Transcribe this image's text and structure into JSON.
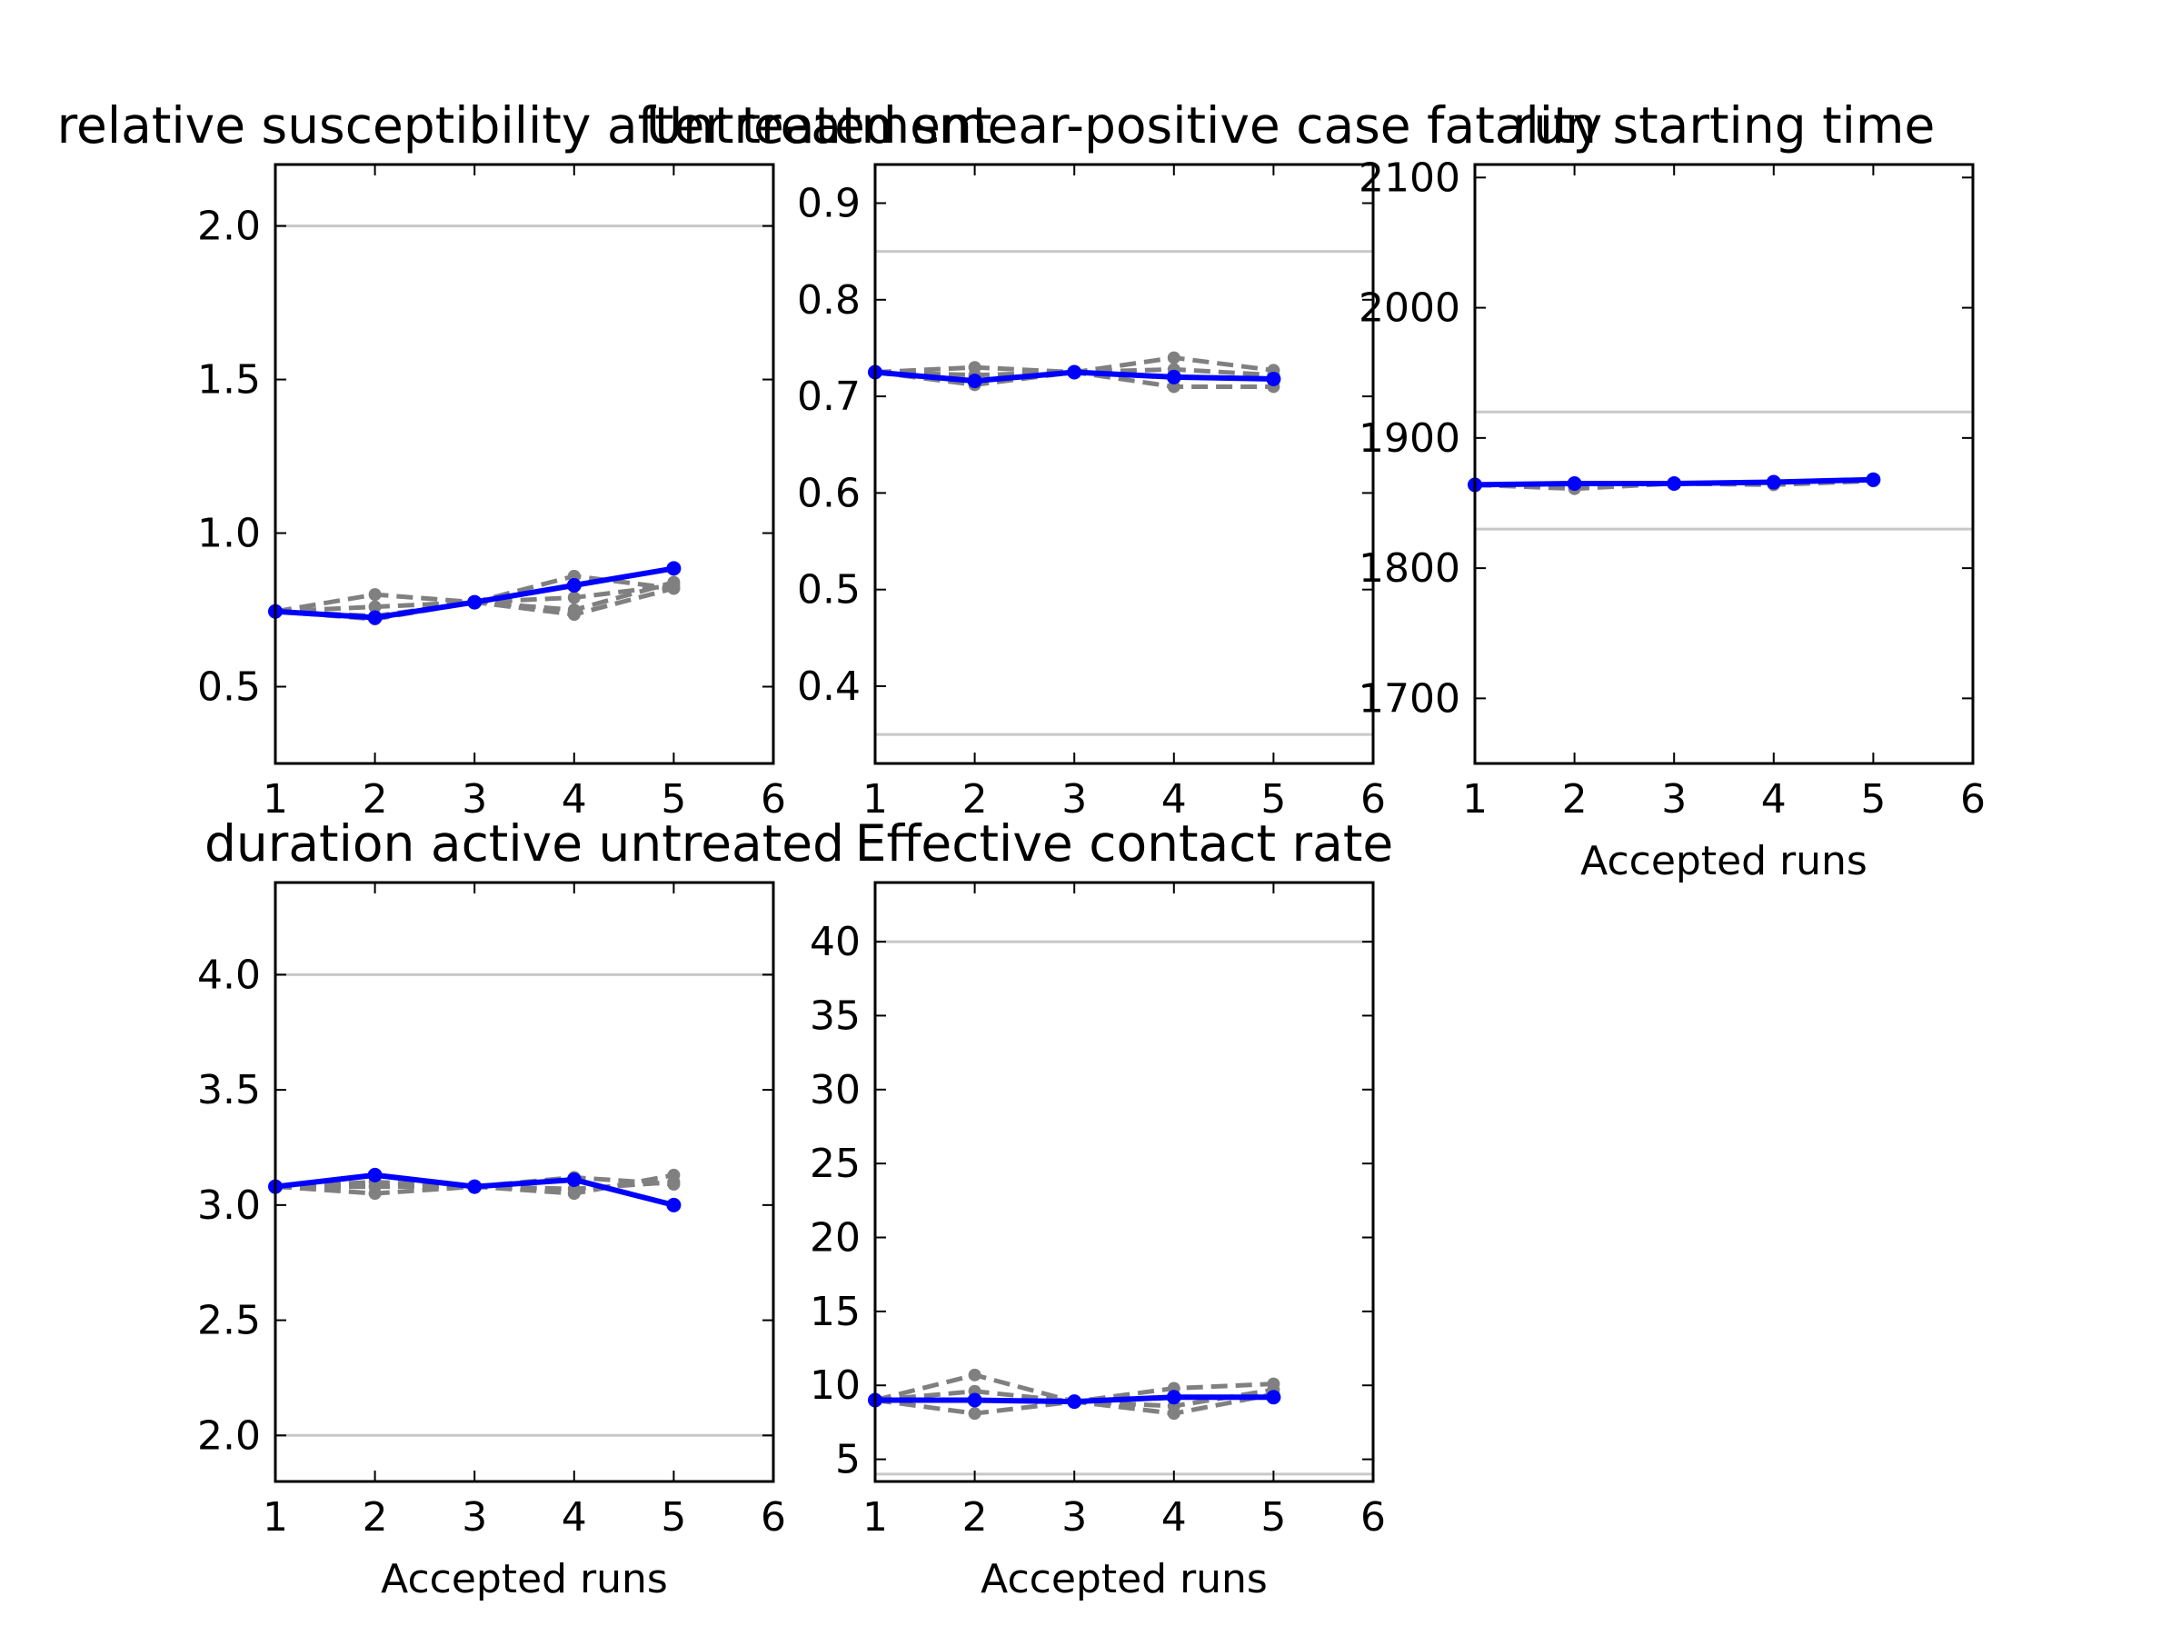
{
  "colors": {
    "main": "#0000ff",
    "trial": "#808080",
    "reference": "#c8c8c8"
  },
  "chart_data": [
    {
      "type": "line",
      "title": "relative susceptibility after treatment",
      "xlabel": "",
      "ylabel": "",
      "xlim": [
        1,
        6
      ],
      "ylim": [
        0.25,
        2.2
      ],
      "xticks": [
        1,
        2,
        3,
        4,
        5,
        6
      ],
      "yticks": [
        0.5,
        1.0,
        1.5,
        2.0
      ],
      "ytick_labels": [
        "0.5",
        "1.0",
        "1.5",
        "2.0"
      ],
      "reference_lines": [
        0.25,
        2.0
      ],
      "accepted": {
        "x": [
          1,
          2,
          3,
          4,
          5
        ],
        "y": [
          0.745,
          0.725,
          0.775,
          0.83,
          0.885
        ]
      },
      "trials": [
        {
          "x": [
            1,
            2,
            3,
            4,
            5
          ],
          "y": [
            0.745,
            0.8,
            0.775,
            0.86,
            0.82
          ]
        },
        {
          "x": [
            1,
            2,
            3,
            4,
            5
          ],
          "y": [
            0.745,
            0.76,
            0.775,
            0.79,
            0.83
          ]
        },
        {
          "x": [
            1,
            2,
            3,
            4,
            5
          ],
          "y": [
            0.745,
            0.73,
            0.775,
            0.75,
            0.84
          ]
        },
        {
          "x": [
            1,
            2,
            3,
            4,
            5
          ],
          "y": [
            0.745,
            0.72,
            0.775,
            0.735,
            0.82
          ]
        }
      ]
    },
    {
      "type": "line",
      "title": "Untreated smear-positive case fatality",
      "xlabel": "",
      "ylabel": "",
      "xlim": [
        1,
        6
      ],
      "ylim": [
        0.32,
        0.94
      ],
      "xticks": [
        1,
        2,
        3,
        4,
        5,
        6
      ],
      "yticks": [
        0.4,
        0.5,
        0.6,
        0.7,
        0.8,
        0.9
      ],
      "ytick_labels": [
        "0.4",
        "0.5",
        "0.6",
        "0.7",
        "0.8",
        "0.9"
      ],
      "reference_lines": [
        0.35,
        0.85
      ],
      "accepted": {
        "x": [
          1,
          2,
          3,
          4,
          5
        ],
        "y": [
          0.725,
          0.716,
          0.725,
          0.72,
          0.718
        ]
      },
      "trials": [
        {
          "x": [
            1,
            2,
            3,
            4,
            5
          ],
          "y": [
            0.725,
            0.73,
            0.725,
            0.74,
            0.727
          ]
        },
        {
          "x": [
            1,
            2,
            3,
            4,
            5
          ],
          "y": [
            0.725,
            0.712,
            0.725,
            0.71,
            0.71
          ]
        },
        {
          "x": [
            1,
            2,
            3,
            4,
            5
          ],
          "y": [
            0.725,
            0.722,
            0.725,
            0.728,
            0.722
          ]
        }
      ]
    },
    {
      "type": "line",
      "title": "run starting time",
      "xlabel": "Accepted runs",
      "ylabel": "",
      "xlim": [
        1,
        6
      ],
      "ylim": [
        1650,
        2110
      ],
      "xticks": [
        1,
        2,
        3,
        4,
        5,
        6
      ],
      "yticks": [
        1700,
        1800,
        1900,
        2000,
        2100
      ],
      "ytick_labels": [
        "1700",
        "1800",
        "1900",
        "2000",
        "2100"
      ],
      "reference_lines": [
        1830,
        1920
      ],
      "accepted": {
        "x": [
          1,
          2,
          3,
          4,
          5
        ],
        "y": [
          1864,
          1865,
          1865,
          1866,
          1868
        ]
      },
      "trials": [
        {
          "x": [
            1,
            2,
            3,
            4,
            5
          ],
          "y": [
            1864,
            1861,
            1865,
            1864,
            1867
          ]
        },
        {
          "x": [
            1,
            2,
            3,
            4,
            5
          ],
          "y": [
            1864,
            1863,
            1865,
            1865,
            1867
          ]
        }
      ]
    },
    {
      "type": "line",
      "title": "duration active untreated",
      "xlabel": "Accepted runs",
      "ylabel": "",
      "xlim": [
        1,
        6
      ],
      "ylim": [
        1.8,
        4.4
      ],
      "xticks": [
        1,
        2,
        3,
        4,
        5,
        6
      ],
      "yticks": [
        2.0,
        2.5,
        3.0,
        3.5,
        4.0
      ],
      "ytick_labels": [
        "2.0",
        "2.5",
        "3.0",
        "3.5",
        "4.0"
      ],
      "reference_lines": [
        2.0,
        4.0
      ],
      "accepted": {
        "x": [
          1,
          2,
          3,
          4,
          5
        ],
        "y": [
          3.08,
          3.13,
          3.08,
          3.11,
          3.0
        ]
      },
      "trials": [
        {
          "x": [
            1,
            2,
            3,
            4,
            5
          ],
          "y": [
            3.08,
            3.05,
            3.08,
            3.05,
            3.13
          ]
        },
        {
          "x": [
            1,
            2,
            3,
            4,
            5
          ],
          "y": [
            3.08,
            3.08,
            3.08,
            3.12,
            3.09
          ]
        },
        {
          "x": [
            1,
            2,
            3,
            4,
            5
          ],
          "y": [
            3.08,
            3.1,
            3.08,
            3.07,
            3.1
          ]
        }
      ]
    },
    {
      "type": "line",
      "title": "Effective contact rate",
      "xlabel": "Accepted runs",
      "ylabel": "",
      "xlim": [
        1,
        6
      ],
      "ylim": [
        3.5,
        44
      ],
      "xticks": [
        1,
        2,
        3,
        4,
        5,
        6
      ],
      "yticks": [
        5,
        10,
        15,
        20,
        25,
        30,
        35,
        40
      ],
      "ytick_labels": [
        "5",
        "10",
        "15",
        "20",
        "25",
        "30",
        "35",
        "40"
      ],
      "reference_lines": [
        4,
        40
      ],
      "accepted": {
        "x": [
          1,
          2,
          3,
          4,
          5
        ],
        "y": [
          9.0,
          9.0,
          8.9,
          9.2,
          9.2
        ]
      },
      "trials": [
        {
          "x": [
            1,
            2,
            3,
            4,
            5
          ],
          "y": [
            9.0,
            10.7,
            8.9,
            9.8,
            10.1
          ]
        },
        {
          "x": [
            1,
            2,
            3,
            4,
            5
          ],
          "y": [
            9.0,
            8.1,
            8.9,
            8.1,
            9.4
          ]
        },
        {
          "x": [
            1,
            2,
            3,
            4,
            5
          ],
          "y": [
            9.0,
            9.6,
            8.9,
            8.6,
            9.7
          ]
        }
      ]
    }
  ]
}
